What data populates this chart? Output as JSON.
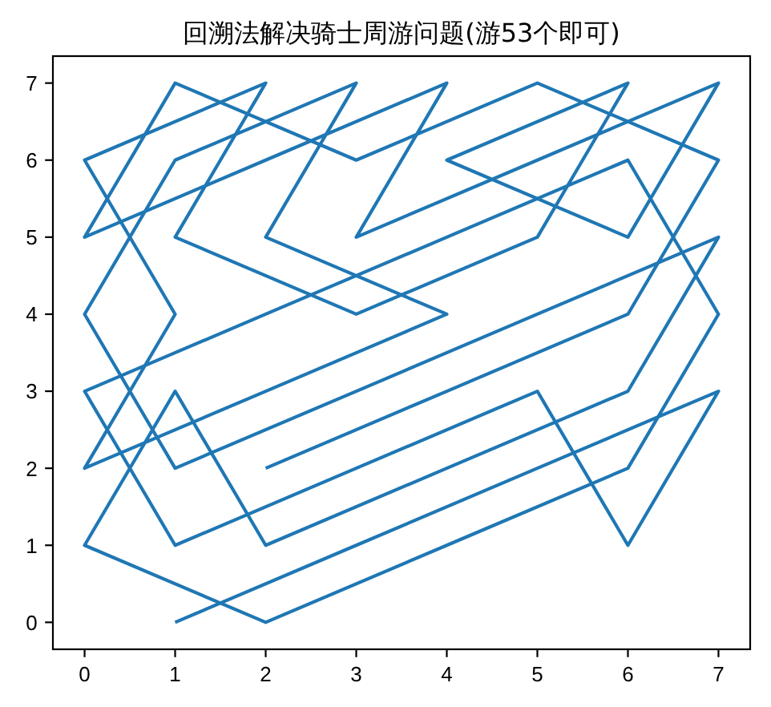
{
  "chart_data": {
    "type": "line",
    "title": "回溯法解决骑士周游问题(游53个即可)",
    "x": [
      2,
      4,
      6,
      7,
      5,
      3,
      1,
      0,
      2,
      4,
      3,
      5,
      7,
      6,
      4,
      6,
      5,
      3,
      1,
      2,
      0,
      1,
      0,
      2,
      4,
      2,
      3,
      1,
      0,
      1,
      3,
      5,
      7,
      6,
      4,
      2,
      1,
      0,
      2,
      4,
      6,
      7,
      6,
      4,
      2,
      0,
      1,
      3,
      5,
      6,
      7,
      5,
      3,
      1
    ],
    "values": [
      2,
      3,
      4,
      6,
      7,
      6,
      7,
      5,
      6,
      7,
      5,
      6,
      7,
      5,
      6,
      7,
      5,
      4,
      5,
      7,
      6,
      4,
      2,
      3,
      4,
      5,
      7,
      6,
      4,
      2,
      3,
      4,
      5,
      3,
      2,
      1,
      3,
      1,
      0,
      1,
      2,
      4,
      6,
      5,
      4,
      3,
      1,
      2,
      3,
      1,
      3,
      2,
      1,
      0
    ],
    "color": "#1f77b4",
    "xlim": [
      -0.35,
      7.35
    ],
    "ylim": [
      -0.35,
      7.35
    ],
    "xticks": [
      0,
      1,
      2,
      3,
      4,
      5,
      6,
      7
    ],
    "yticks": [
      0,
      1,
      2,
      3,
      4,
      5,
      6,
      7
    ]
  }
}
